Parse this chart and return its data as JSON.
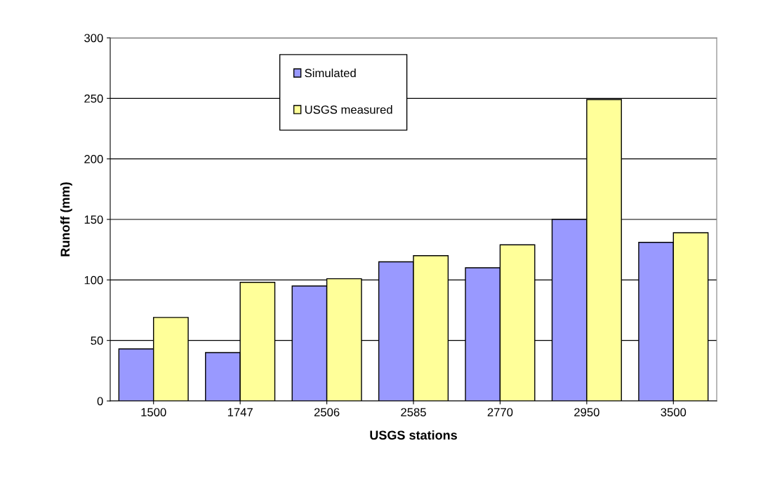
{
  "chart_data": {
    "type": "bar",
    "xlabel": "USGS stations",
    "ylabel": "Runoff (mm)",
    "categories": [
      "1500",
      "1747",
      "2506",
      "2585",
      "2770",
      "2950",
      "3500"
    ],
    "series": [
      {
        "name": "Simulated",
        "color": "#9999ff",
        "values": [
          43,
          40,
          95,
          115,
          110,
          150,
          131
        ]
      },
      {
        "name": "USGS measured",
        "color": "#ffff99",
        "values": [
          69,
          98,
          101,
          120,
          129,
          249,
          139
        ]
      }
    ],
    "ylim": [
      0,
      300
    ],
    "yticks": [
      0,
      50,
      100,
      150,
      200,
      250,
      300
    ],
    "grid": "y",
    "legend": "top"
  }
}
